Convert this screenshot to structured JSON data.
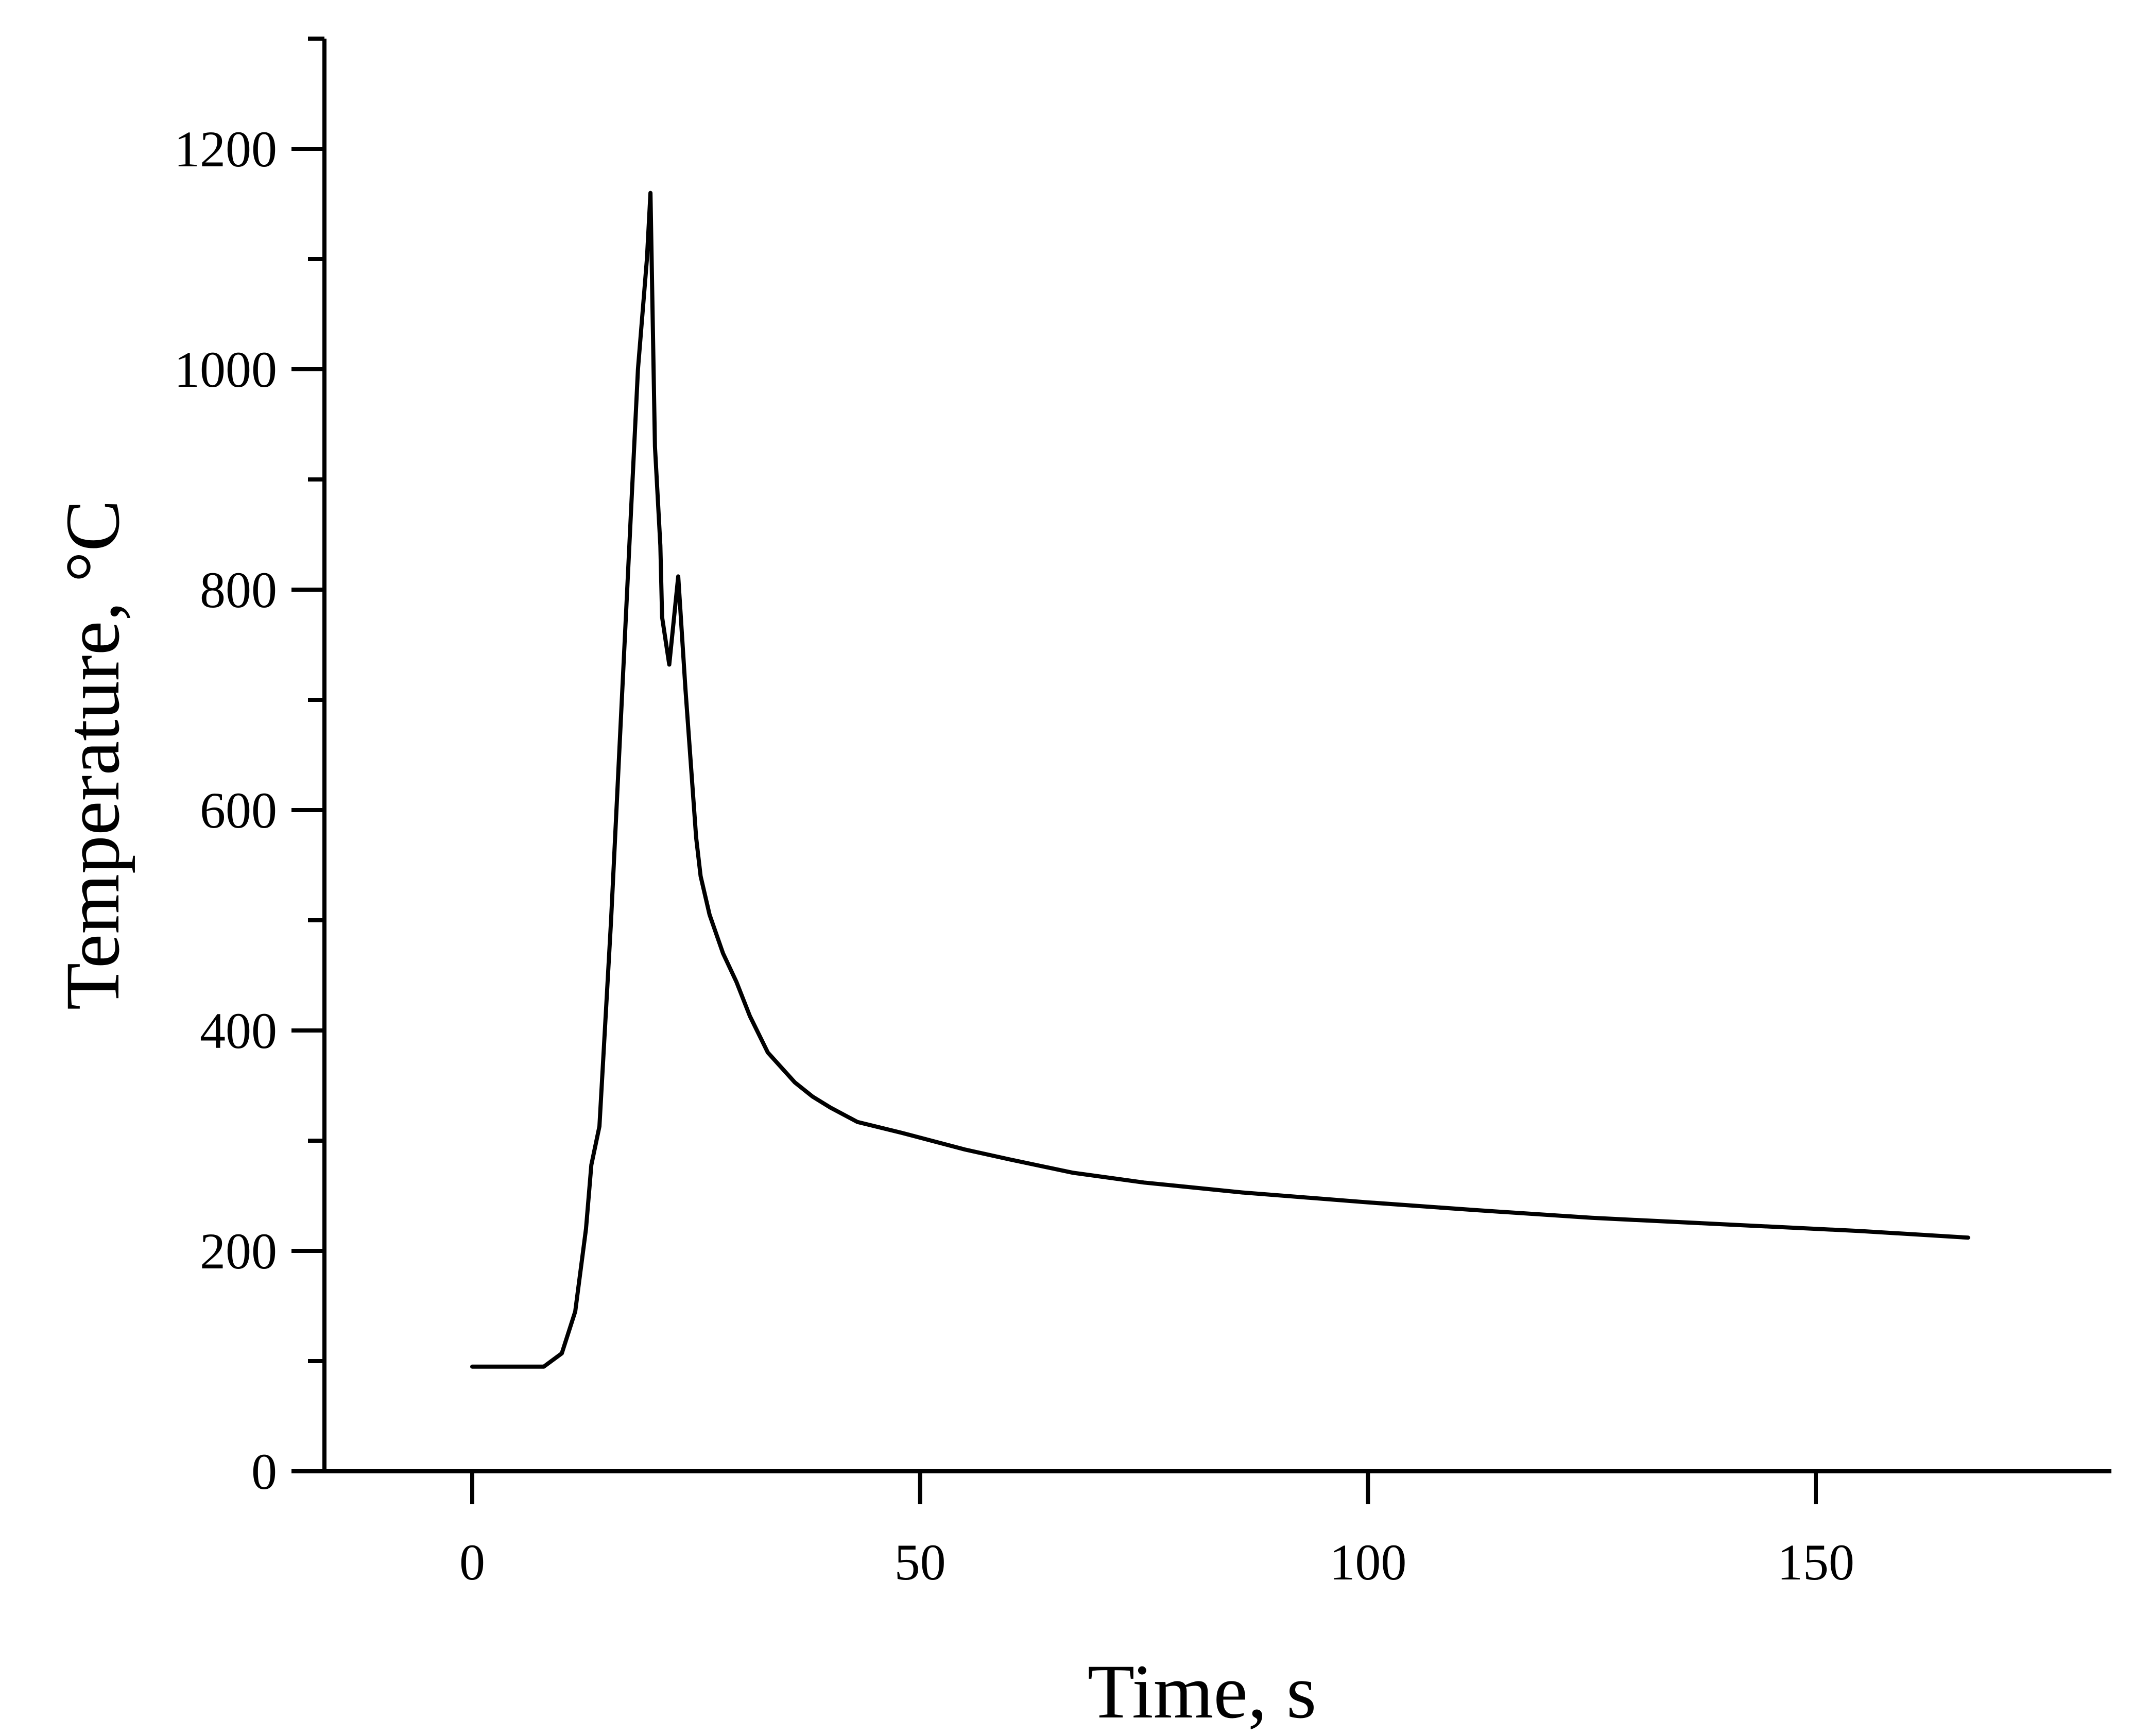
{
  "chart_data": {
    "type": "line",
    "title": "",
    "xlabel": "Time, s",
    "ylabel": "Temperature, °C",
    "xlim": [
      -16.5,
      183
    ],
    "ylim": [
      0,
      1300
    ],
    "x_ticks": [
      0,
      50,
      100,
      150
    ],
    "x_minor_ticks": [],
    "y_ticks": [
      0,
      200,
      400,
      600,
      800,
      1000,
      1200
    ],
    "y_minor_ticks": [
      100,
      300,
      500,
      700,
      900,
      1100,
      1300
    ],
    "grid": false,
    "legend": "none",
    "line_color": "#000000",
    "series": [
      {
        "x": [
          0,
          2,
          4,
          6,
          8,
          10,
          11.5,
          12.7,
          13.3,
          14.2,
          15.5,
          17,
          18.5,
          19.5,
          19.9,
          20.4,
          21,
          21.2,
          22,
          23,
          23.8,
          25,
          25.5,
          26.5,
          28,
          29.5,
          31,
          33,
          36,
          38,
          40,
          43,
          48,
          55,
          60,
          67,
          75,
          86,
          100,
          112,
          125,
          140,
          155,
          167
        ],
        "y": [
          95,
          95,
          95,
          95,
          95,
          107,
          145,
          220,
          278,
          313,
          500,
          750,
          1000,
          1100,
          1160,
          930,
          840,
          775,
          732,
          812,
          710,
          575,
          540,
          505,
          470,
          444,
          413,
          380,
          353,
          340,
          330,
          317,
          307,
          292,
          283,
          271,
          262,
          253,
          244,
          237,
          230,
          224,
          218,
          212
        ]
      }
    ]
  }
}
